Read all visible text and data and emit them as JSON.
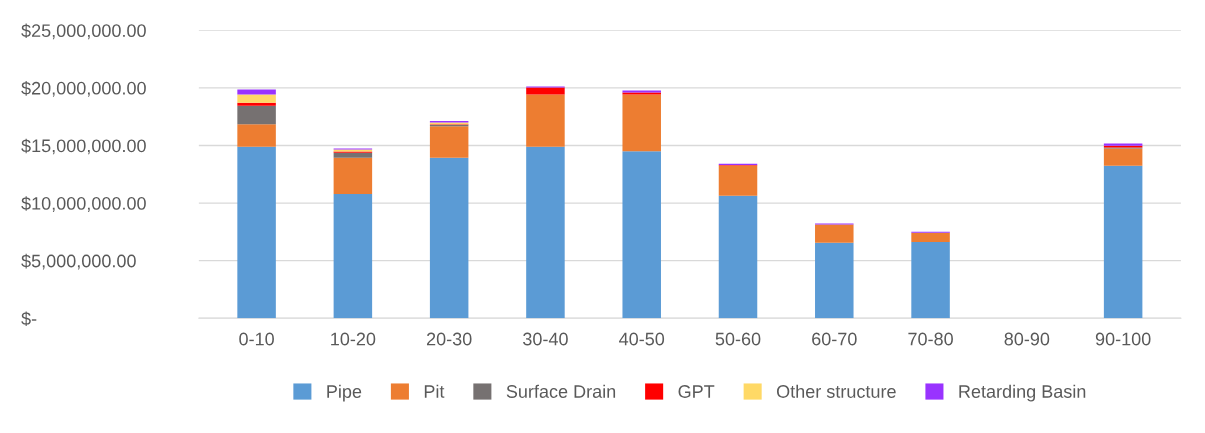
{
  "chart_data": {
    "type": "bar",
    "stacked": true,
    "categories": [
      "0-10",
      "10-20",
      "20-30",
      "30-40",
      "40-50",
      "50-60",
      "60-70",
      "70-80",
      "80-90",
      "90-100"
    ],
    "series": [
      {
        "name": "Pipe",
        "color": "#5b9bd5",
        "values": [
          14900000,
          10790000,
          13940000,
          14900000,
          14500000,
          10640000,
          6550000,
          6610000,
          0,
          13230000
        ]
      },
      {
        "name": "Pit",
        "color": "#ed7d31",
        "values": [
          1950000,
          3150000,
          2740000,
          4520000,
          4920000,
          2620000,
          1590000,
          820000,
          0,
          1500000
        ]
      },
      {
        "name": "Surface Drain",
        "color": "#767171",
        "values": [
          1590000,
          440000,
          120000,
          0,
          0,
          0,
          0,
          0,
          0,
          100000
        ]
      },
      {
        "name": "GPT",
        "color": "#ff0000",
        "values": [
          270000,
          90000,
          50000,
          620000,
          180000,
          50000,
          0,
          0,
          0,
          150000
        ]
      },
      {
        "name": "Other structure",
        "color": "#ffd966",
        "values": [
          710000,
          180000,
          150000,
          0,
          0,
          0,
          0,
          0,
          0,
          0
        ]
      },
      {
        "name": "Retarding Basin",
        "color": "#9933ff",
        "values": [
          440000,
          80000,
          120000,
          90000,
          180000,
          100000,
          80000,
          90000,
          0,
          200000
        ]
      }
    ],
    "ylim": [
      0,
      25000000
    ],
    "yticks": [
      {
        "value": 0,
        "label": "$-"
      },
      {
        "value": 5000000,
        "label": "$5,000,000.00"
      },
      {
        "value": 10000000,
        "label": "$10,000,000.00"
      },
      {
        "value": 15000000,
        "label": "$15,000,000.00"
      },
      {
        "value": 20000000,
        "label": "$20,000,000.00"
      },
      {
        "value": 25000000,
        "label": "$25,000,000.00"
      }
    ],
    "grid": "y",
    "legend": "bottom"
  }
}
